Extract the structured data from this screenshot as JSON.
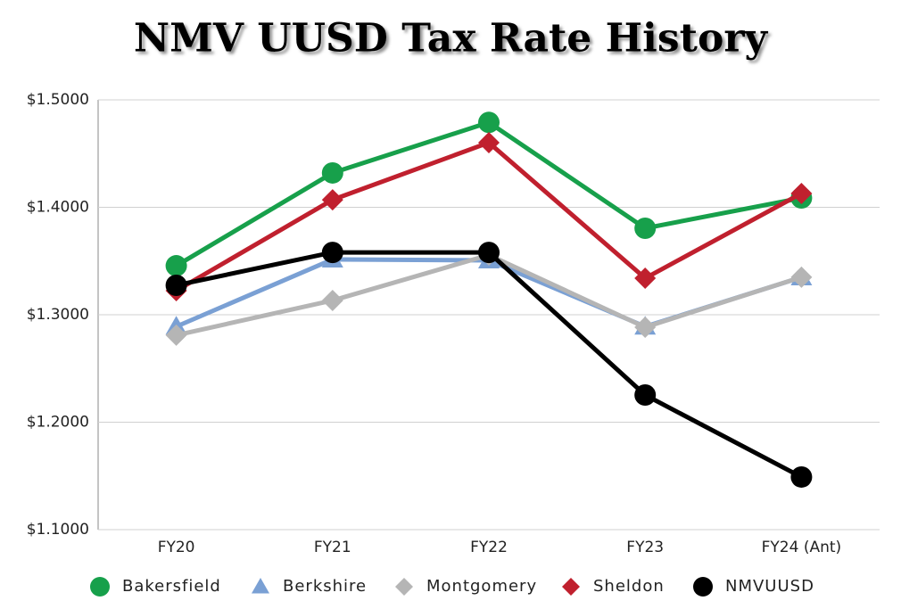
{
  "chart_data": {
    "type": "line",
    "title": "NMV UUSD Tax Rate History",
    "categories": [
      "FY20",
      "FY21",
      "FY22",
      "FY23",
      "FY24 (Ant)"
    ],
    "ylim": [
      1.1,
      1.5
    ],
    "yticks": [
      {
        "value": 1.1,
        "label": "$1.1000"
      },
      {
        "value": 1.2,
        "label": "$1.2000"
      },
      {
        "value": 1.3,
        "label": "$1.3000"
      },
      {
        "value": 1.4,
        "label": "$1.4000"
      },
      {
        "value": 1.5,
        "label": "$1.5000"
      }
    ],
    "grid": true,
    "legend": "bottom",
    "series": [
      {
        "name": "Bakersfield",
        "color": "#17a04b",
        "marker": "circle",
        "values": [
          1.3456,
          1.432,
          1.479,
          1.3805,
          1.4087
        ]
      },
      {
        "name": "Berkshire",
        "color": "#7aa0d4",
        "marker": "triangle",
        "values": [
          1.289,
          1.3515,
          1.3506,
          1.289,
          1.3349
        ]
      },
      {
        "name": "Montgomery",
        "color": "#b5b5b5",
        "marker": "diamond",
        "values": [
          1.281,
          1.3133,
          1.3556,
          1.2884,
          1.335
        ]
      },
      {
        "name": "Sheldon",
        "color": "#c0202e",
        "marker": "diamond",
        "values": [
          1.3224,
          1.407,
          1.4602,
          1.334,
          1.4129
        ]
      },
      {
        "name": "NMVUUSD",
        "color": "#000000",
        "marker": "circle",
        "values": [
          1.3274,
          1.358,
          1.358,
          1.2253,
          1.149
        ]
      }
    ]
  }
}
